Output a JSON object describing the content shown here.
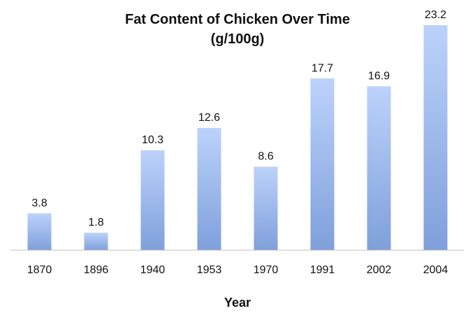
{
  "chart_data": {
    "type": "bar",
    "title": "Fat Content of Chicken Over Time",
    "subtitle": "(g/100g)",
    "xlabel": "Year",
    "ylabel": "",
    "categories": [
      "1870",
      "1896",
      "1940",
      "1953",
      "1970",
      "1991",
      "2002",
      "2004"
    ],
    "values": [
      3.8,
      1.8,
      10.3,
      12.6,
      8.6,
      17.7,
      16.9,
      23.2
    ],
    "data_labels": [
      "3.8",
      "1.8",
      "10.3",
      "12.6",
      "8.6",
      "17.7",
      "16.9",
      "23.2"
    ],
    "ylim": [
      0,
      23.2
    ],
    "grid": false,
    "legend": "none",
    "colors": {
      "bar_top": "#bcd2fb",
      "bar_bottom": "#7fa0db",
      "axis": "#bfbfbf",
      "text": "#111111"
    }
  }
}
